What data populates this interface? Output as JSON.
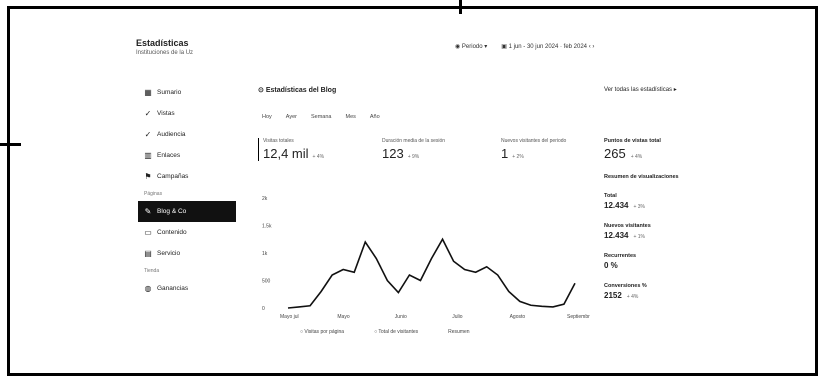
{
  "brand": {
    "title": "Estadísticas",
    "subtitle": "Instituciones de la Uz"
  },
  "topbar": {
    "filter_label": "Periodo",
    "date_range": "1 jun - 30 jun 2024 · feb 2024"
  },
  "nav": [
    {
      "label": "Sumario",
      "icon": "grid-icon"
    },
    {
      "label": "Vistas",
      "icon": "check-icon"
    },
    {
      "label": "Audiencia",
      "icon": "check-icon"
    },
    {
      "label": "Enlaces",
      "icon": "chart-icon"
    },
    {
      "label": "Campañas",
      "icon": "flag-icon"
    }
  ],
  "nav_section": "Páginas",
  "nav2": [
    {
      "label": "Blog & Co",
      "icon": "pencil-icon",
      "active": true
    },
    {
      "label": "Contenido",
      "icon": "box-icon"
    },
    {
      "label": "Servicio",
      "icon": "doc-icon"
    }
  ],
  "nav_section2": "Tienda",
  "nav3": [
    {
      "label": "Ganancias",
      "icon": "bag-icon"
    }
  ],
  "main": {
    "title": "Estadísticas del Blog",
    "right_label": "Ver todas las estadísticas"
  },
  "tabs": [
    "Hoy",
    "Ayer",
    "Semana",
    "Mes",
    "Año"
  ],
  "cards": [
    {
      "label": "Visitas totales",
      "value": "12,4 mil",
      "delta": "+ 4%"
    },
    {
      "label": "Duración media de la sesión",
      "value": "123",
      "delta": "+ 9%"
    },
    {
      "label": "Nuevos visitantes del periodo",
      "value": "1",
      "delta": "+ 2%"
    },
    {
      "label": "Puntos de vistas total",
      "value": "265",
      "delta": "+ 4%"
    }
  ],
  "right": {
    "heading": "Resumen de visualizaciones",
    "items": [
      {
        "label": "Total",
        "value": "12.434",
        "delta": "+ 3%"
      },
      {
        "label": "Nuevos visitantes",
        "value": "12.434",
        "delta": "+ 1%"
      },
      {
        "label": "Recurrentes",
        "value": "0 %",
        "delta": ""
      },
      {
        "label": "Conversiones %",
        "value": "2152",
        "delta": "+ 4%"
      }
    ]
  },
  "chart_data": {
    "type": "line",
    "y_ticks": [
      "2k",
      "1.5k",
      "1k",
      "500",
      "0"
    ],
    "ylim": [
      0,
      2000
    ],
    "x_ticks": [
      "Mayo jul",
      "Mayo",
      "Junio",
      "Julio",
      "Agosto",
      "Septiembre"
    ],
    "values": [
      0,
      20,
      40,
      300,
      600,
      700,
      650,
      1200,
      900,
      500,
      280,
      600,
      500,
      900,
      1250,
      850,
      700,
      650,
      750,
      600,
      300,
      120,
      50,
      30,
      20,
      70,
      450
    ],
    "legend": [
      "Visitas por página",
      "Total de visitantes",
      "Resumen"
    ]
  }
}
